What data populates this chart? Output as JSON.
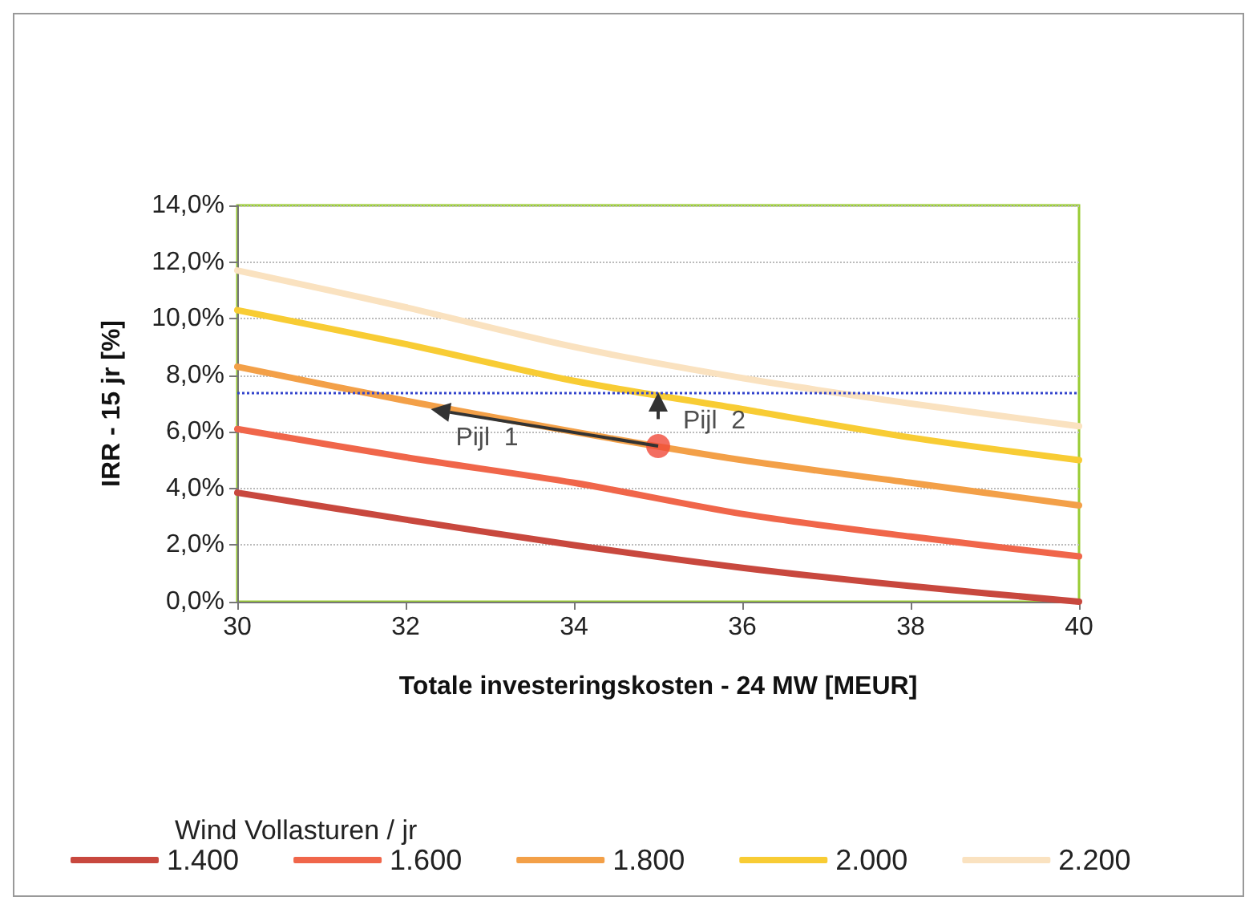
{
  "chart_data": {
    "type": "line",
    "xlabel": "Totale investeringskosten - 24 MW [MEUR]",
    "ylabel": "IRR - 15 jr [%]",
    "legend_title": "Wind Vollasturen / jr",
    "x": [
      30,
      32,
      34,
      36,
      38,
      40
    ],
    "series": [
      {
        "name": "1.400",
        "color": "#c8483e",
        "values": [
          3.85,
          2.9,
          2.0,
          1.2,
          0.55,
          0.0
        ]
      },
      {
        "name": "1.600",
        "color": "#f0664a",
        "values": [
          6.1,
          5.1,
          4.2,
          3.1,
          2.3,
          1.6
        ]
      },
      {
        "name": "1.800",
        "color": "#f3a048",
        "values": [
          8.3,
          7.1,
          6.0,
          5.0,
          4.2,
          3.4
        ]
      },
      {
        "name": "2.000",
        "color": "#f8cc34",
        "values": [
          10.3,
          9.1,
          7.8,
          6.8,
          5.8,
          5.0
        ]
      },
      {
        "name": "2.200",
        "color": "#fae2c0",
        "values": [
          11.7,
          10.4,
          9.0,
          7.9,
          7.0,
          6.2
        ]
      },
      {
        "type": "scatter",
        "color": "#f04a3a",
        "x": [
          35
        ],
        "values": [
          5.5
        ]
      }
    ],
    "annotations": [
      {
        "text": "Pijl  1",
        "x": 32.3,
        "y": 6.8
      },
      {
        "text": "Pijl  2",
        "x": 35,
        "y": 7.4
      }
    ],
    "ref_lines": [
      {
        "axis": "y",
        "value": 7.4,
        "color": "#3344cc",
        "line_style": "dotted"
      }
    ],
    "xlim": [
      30,
      40
    ],
    "xticks": [
      30,
      32,
      34,
      36,
      38,
      40
    ],
    "ylim": [
      0,
      14
    ],
    "yticks": [
      {
        "value": 0,
        "label": "0,0%"
      },
      {
        "value": 2,
        "label": "2,0%"
      },
      {
        "value": 4,
        "label": "4,0%"
      },
      {
        "value": 6,
        "label": "6,0%"
      },
      {
        "value": 8,
        "label": "8,0%"
      },
      {
        "value": 10,
        "label": "10,0%"
      },
      {
        "value": 12,
        "label": "12,0%"
      },
      {
        "value": 14,
        "label": "14,0%"
      }
    ],
    "grid": "y",
    "legend": "bottom",
    "line_style": "solid"
  }
}
